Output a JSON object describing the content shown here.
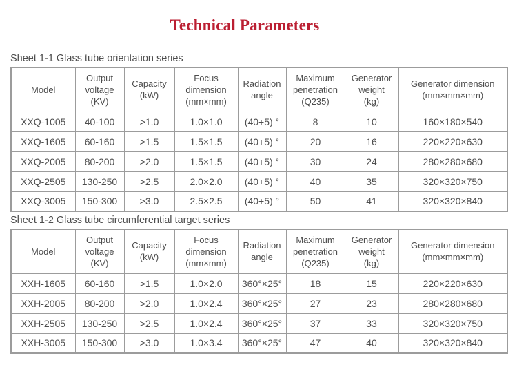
{
  "page": {
    "title": "Technical Parameters"
  },
  "theme": {
    "title_color": "#bb1f32",
    "text_color": "#4d4d4d",
    "border_color": "#9c9c9c",
    "background": "#ffffff"
  },
  "tables": [
    {
      "caption": "Sheet 1-1 Glass tube orientation series",
      "headers": [
        "Model",
        "Output\nvoltage\n(KV)",
        "Capacity\n(kW)",
        "Focus\ndimension\n(mm×mm)",
        "Radiation\nangle",
        "Maximum\npenetration\n(Q235)",
        "Generator\nweight\n(kg)",
        "Generator dimension\n(mm×mm×mm)"
      ],
      "rows": [
        [
          "XXQ-1005",
          "40-100",
          ">1.0",
          "1.0×1.0",
          "(40+5) °",
          "8",
          "10",
          "160×180×540"
        ],
        [
          "XXQ-1605",
          "60-160",
          ">1.5",
          "1.5×1.5",
          "(40+5) °",
          "20",
          "16",
          "220×220×630"
        ],
        [
          "XXQ-2005",
          "80-200",
          ">2.0",
          "1.5×1.5",
          "(40+5) °",
          "30",
          "24",
          "280×280×680"
        ],
        [
          "XXQ-2505",
          "130-250",
          ">2.5",
          "2.0×2.0",
          "(40+5) °",
          "40",
          "35",
          "320×320×750"
        ],
        [
          "XXQ-3005",
          "150-300",
          ">3.0",
          "2.5×2.5",
          "(40+5) °",
          "50",
          "41",
          "320×320×840"
        ]
      ]
    },
    {
      "caption": "Sheet 1-2 Glass tube circumferential target series",
      "headers": [
        "Model",
        "Output\nvoltage\n(KV)",
        "Capacity\n(kW)",
        "Focus\ndimension\n(mm×mm)",
        "Radiation\nangle",
        "Maximum\npenetration\n(Q235)",
        "Generator\nweight\n(kg)",
        "Generator dimension\n(mm×mm×mm)"
      ],
      "rows": [
        [
          "XXH-1605",
          "60-160",
          ">1.5",
          "1.0×2.0",
          "360°×25°",
          "18",
          "15",
          "220×220×630"
        ],
        [
          "XXH-2005",
          "80-200",
          ">2.0",
          "1.0×2.4",
          "360°×25°",
          "27",
          "23",
          "280×280×680"
        ],
        [
          "XXH-2505",
          "130-250",
          ">2.5",
          "1.0×2.4",
          "360°×25°",
          "37",
          "33",
          "320×320×750"
        ],
        [
          "XXH-3005",
          "150-300",
          ">3.0",
          "1.0×3.4",
          "360°×25°",
          "47",
          "40",
          "320×320×840"
        ]
      ]
    }
  ]
}
